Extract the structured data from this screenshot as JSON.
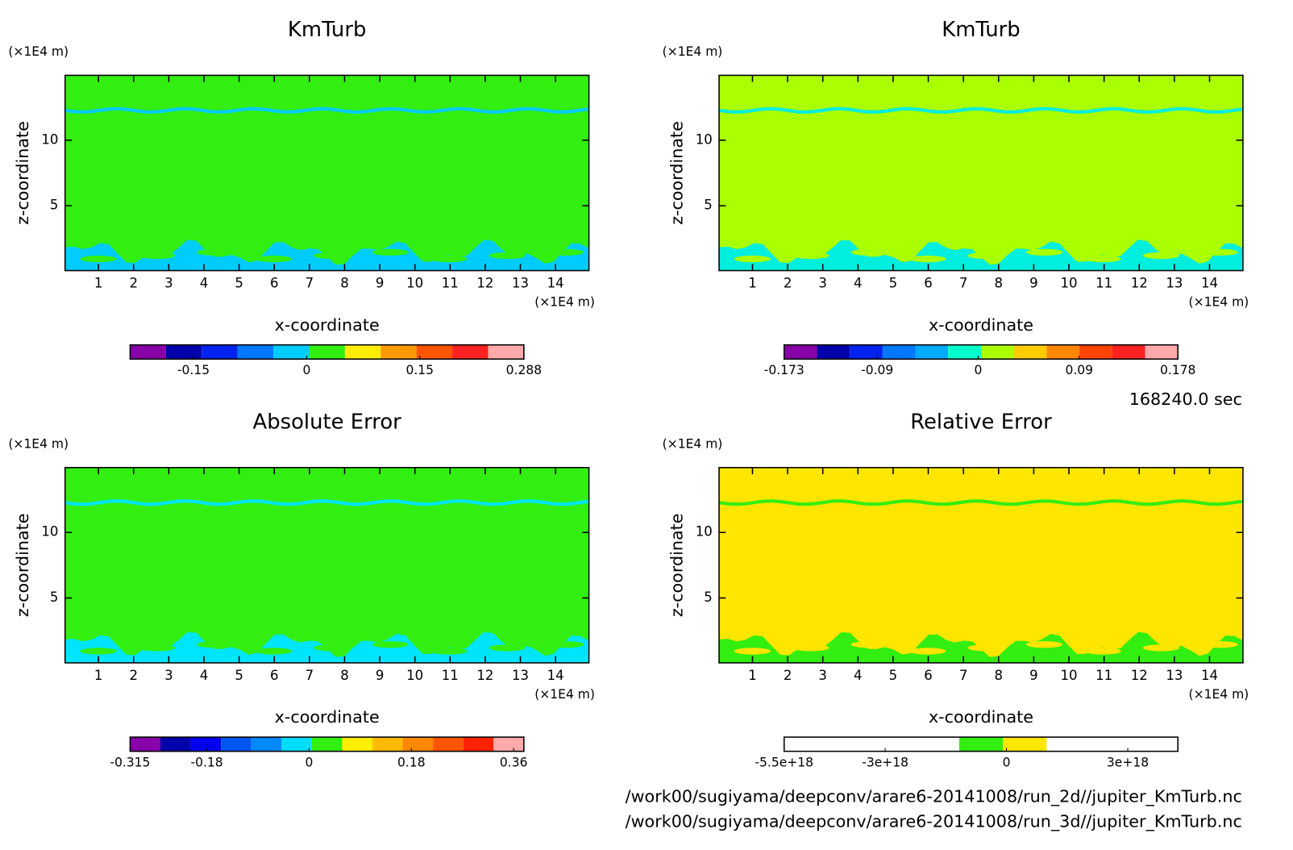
{
  "chart_data": [
    {
      "type": "contour",
      "title": "KmTurb",
      "xlabel": "x-coordinate",
      "ylabel": "z-coordinate",
      "x_unit": "(×1E4 m)",
      "y_unit": "(×1E4 m)",
      "xlim": [
        0.05,
        14.95
      ],
      "ylim": [
        0.05,
        14.95
      ],
      "xticks": [
        1,
        2,
        3,
        4,
        5,
        6,
        7,
        8,
        9,
        10,
        11,
        12,
        13,
        14
      ],
      "yticks": [
        5,
        10
      ],
      "field_color": "#33ee11",
      "feature_color": "#00ccff",
      "colorbar": {
        "clim": [
          -0.234,
          0.288
        ],
        "colors": [
          "#8800aa",
          "#0000aa",
          "#0022ee",
          "#0077ff",
          "#00ccff",
          "#33ee11",
          "#ffee00",
          "#ff9900",
          "#ff5500",
          "#ff2222",
          "#ffaaaa"
        ],
        "ticks": [
          -0.15,
          0,
          0.15,
          0.288
        ]
      }
    },
    {
      "type": "contour",
      "title": "KmTurb",
      "xlabel": "x-coordinate",
      "ylabel": "z-coordinate",
      "x_unit": "(×1E4 m)",
      "y_unit": "(×1E4 m)",
      "xlim": [
        0.05,
        14.95
      ],
      "ylim": [
        0.05,
        14.95
      ],
      "xticks": [
        1,
        2,
        3,
        4,
        5,
        6,
        7,
        8,
        9,
        10,
        11,
        12,
        13,
        14
      ],
      "yticks": [
        5,
        10
      ],
      "field_color": "#aaff00",
      "feature_color": "#00eedd",
      "colorbar": {
        "clim": [
          -0.173,
          0.178
        ],
        "colors": [
          "#8800aa",
          "#0000aa",
          "#0022ee",
          "#0077ff",
          "#00aaff",
          "#00ffcc",
          "#aaff00",
          "#ffcc00",
          "#ff8800",
          "#ff4400",
          "#ff2222",
          "#ffaaaa"
        ],
        "ticks": [
          -0.173,
          -0.09,
          0,
          0.09,
          0.178
        ]
      }
    },
    {
      "type": "contour",
      "title": "Absolute Error",
      "xlabel": "x-coordinate",
      "ylabel": "z-coordinate",
      "x_unit": "(×1E4 m)",
      "y_unit": "(×1E4 m)",
      "xlim": [
        0.05,
        14.95
      ],
      "ylim": [
        0.05,
        14.95
      ],
      "xticks": [
        1,
        2,
        3,
        4,
        5,
        6,
        7,
        8,
        9,
        10,
        11,
        12,
        13,
        14
      ],
      "yticks": [
        5,
        10
      ],
      "field_color": "#33ee11",
      "feature_color": "#00e5ff",
      "colorbar": {
        "clim": [
          -0.315,
          0.378
        ],
        "colors": [
          "#8800aa",
          "#0000aa",
          "#0000ee",
          "#0055ee",
          "#0088ff",
          "#00ddff",
          "#33ee11",
          "#ffee00",
          "#ffbb00",
          "#ff8800",
          "#ff5500",
          "#ff2200",
          "#ffaaaa"
        ],
        "ticks": [
          -0.315,
          -0.18,
          0,
          0.18,
          0.36
        ]
      }
    },
    {
      "type": "contour",
      "title": "Relative Error",
      "xlabel": "x-coordinate",
      "ylabel": "z-coordinate",
      "x_unit": "(×1E4 m)",
      "y_unit": "(×1E4 m)",
      "xlim": [
        0.05,
        14.95
      ],
      "ylim": [
        0.05,
        14.95
      ],
      "xticks": [
        1,
        2,
        3,
        4,
        5,
        6,
        7,
        8,
        9,
        10,
        11,
        12,
        13,
        14
      ],
      "yticks": [
        5,
        10
      ],
      "field_color": "#ffe600",
      "feature_color": "#33ee11",
      "colorbar": {
        "clim": [
          -5.5e+18,
          4.24e+18
        ],
        "colors": [
          "#ffffff",
          "#ffffff",
          "#ffffff",
          "#ffffff",
          "#33ee11",
          "#ffe600",
          "#ffffff",
          "#ffffff",
          "#ffffff"
        ],
        "ticks": [
          {
            "value": -5.5e+18,
            "label": "-5.5e+18"
          },
          {
            "value": -3e+18,
            "label": "-3e+18"
          },
          0,
          {
            "value": 3e+18,
            "label": "3e+18"
          }
        ]
      }
    }
  ],
  "footer": {
    "time": "168240.0 sec",
    "files": [
      "/work00/sugiyama/deepconv/arare6-20141008/run_2d//jupiter_KmTurb.nc",
      "/work00/sugiyama/deepconv/arare6-20141008/run_3d//jupiter_KmTurb.nc"
    ]
  }
}
